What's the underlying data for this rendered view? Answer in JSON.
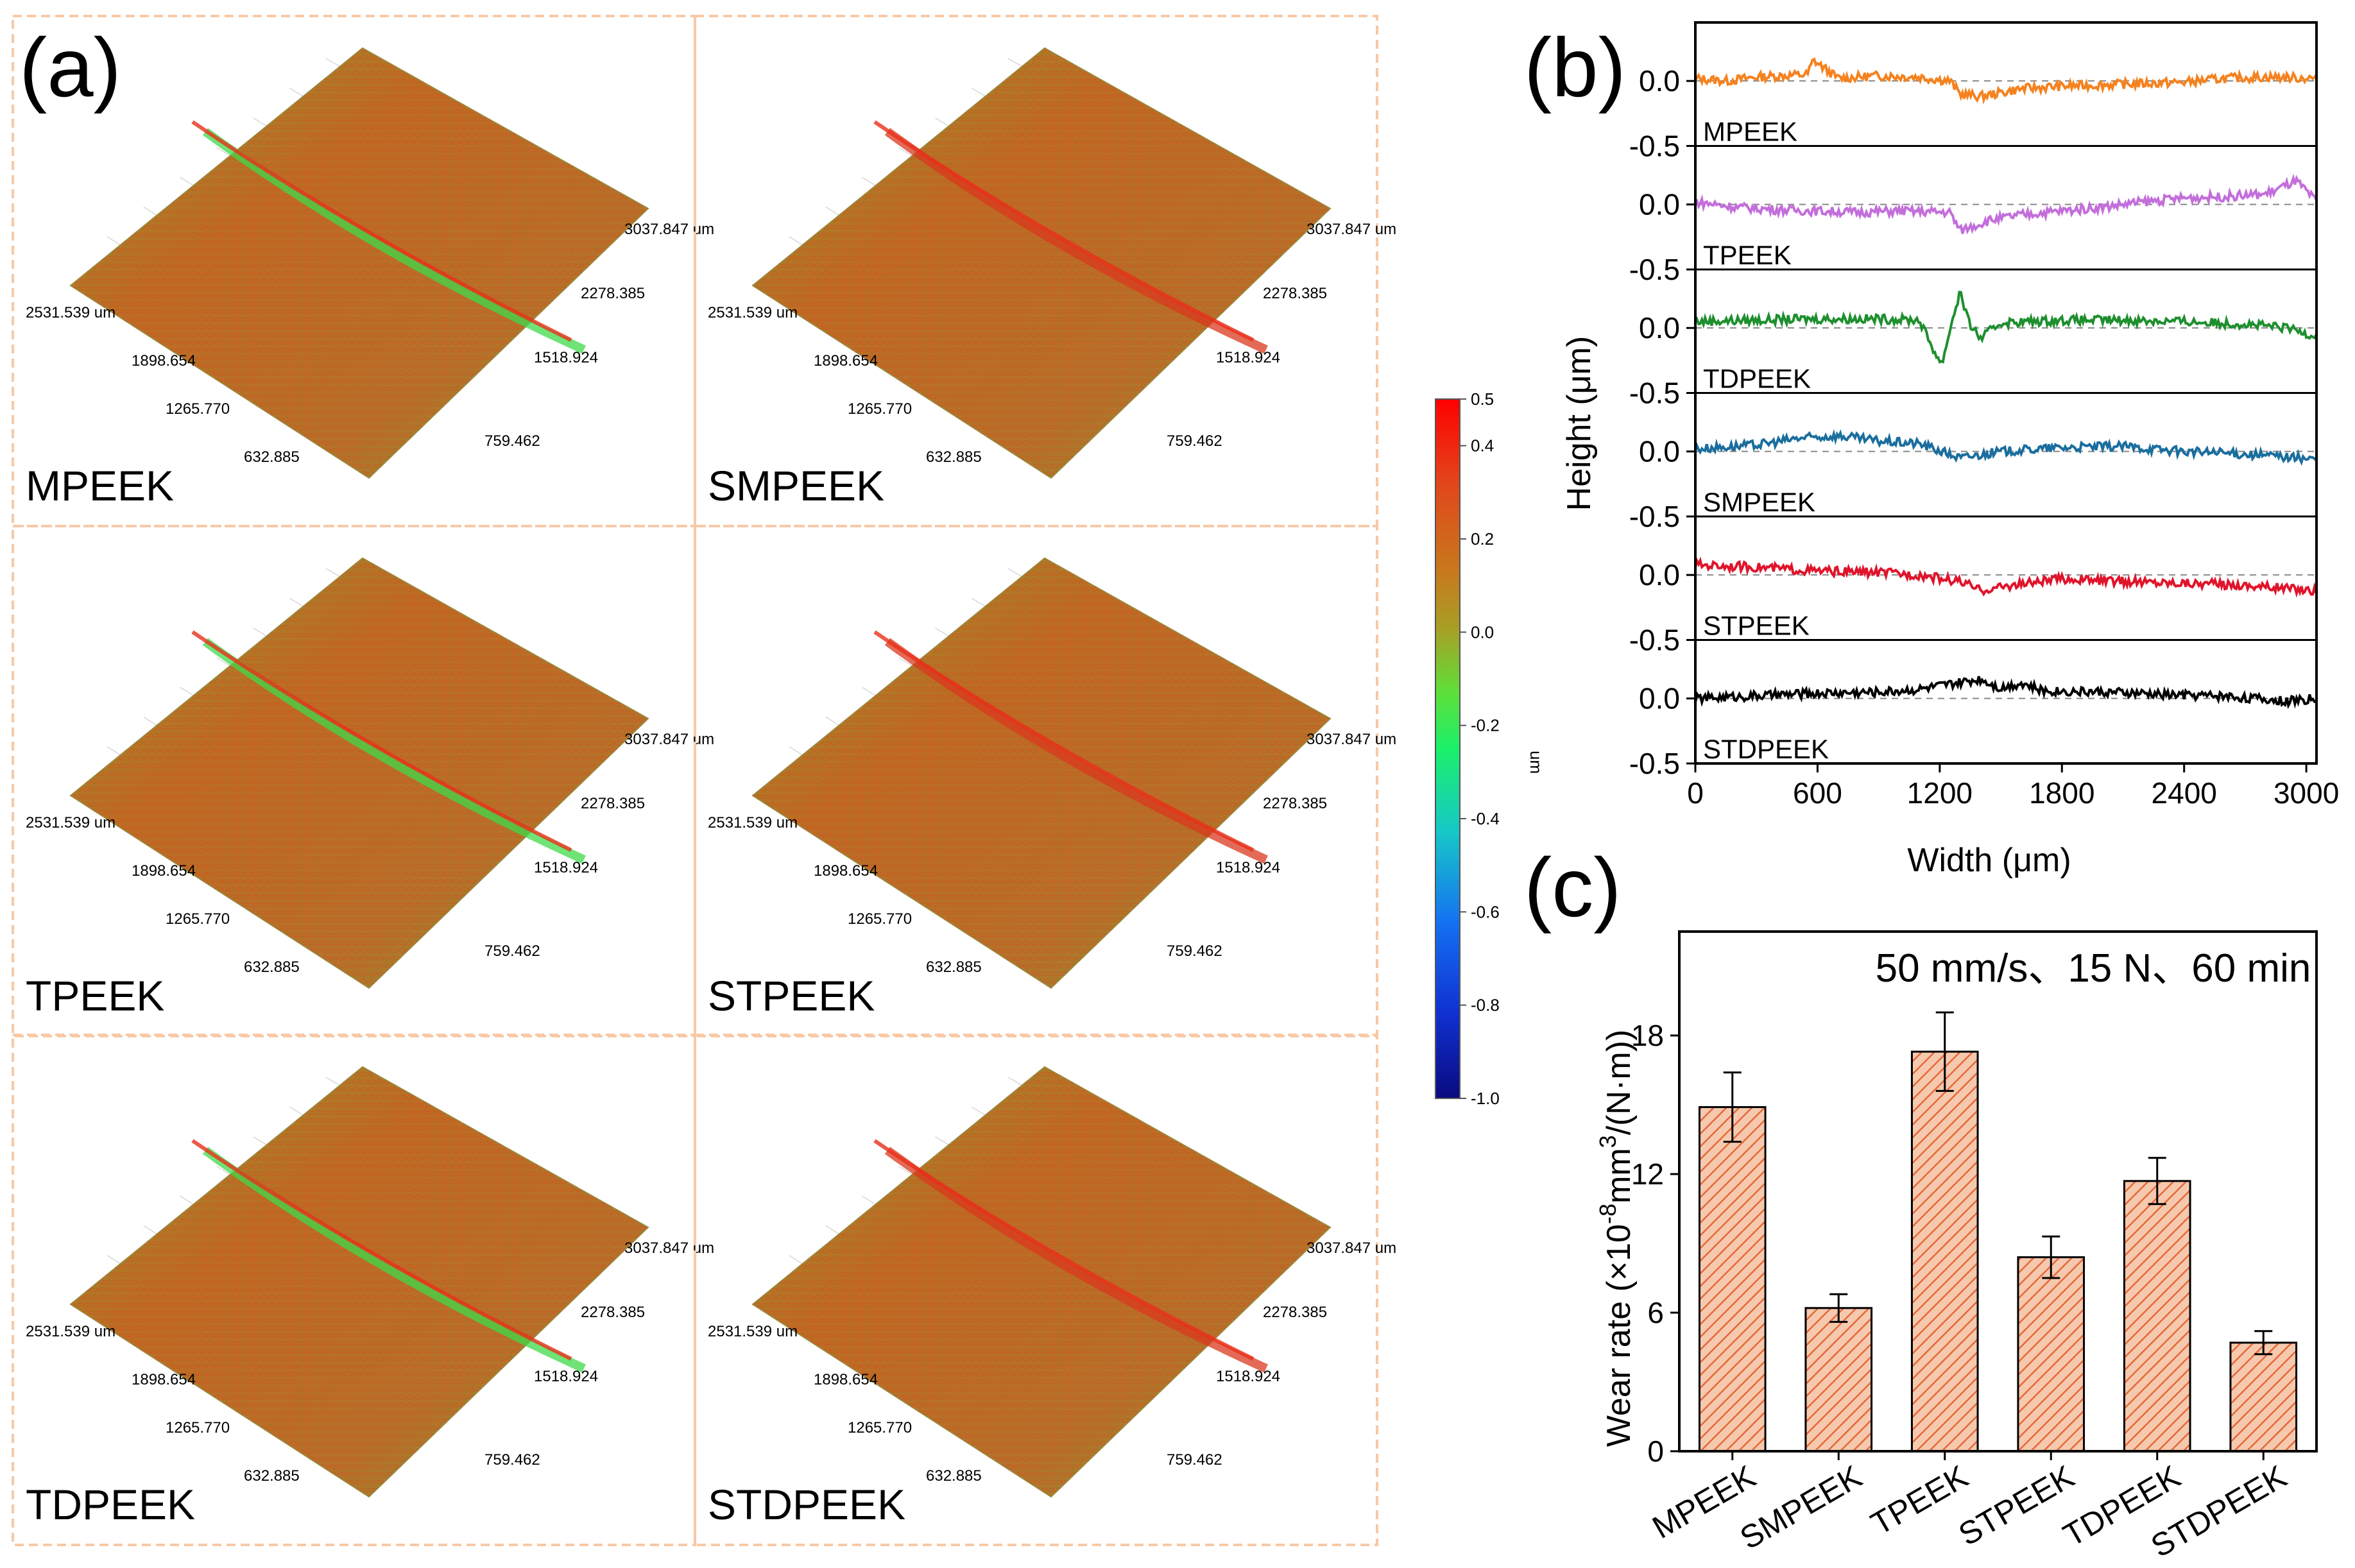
{
  "panel_a": {
    "label": "(a)",
    "samples": [
      "MPEEK",
      "SMPEEK",
      "TPEEK",
      "STPEEK",
      "TDPEEK",
      "STDPEEK"
    ],
    "axis_labels_y": [
      "2531.539 um",
      "1898.654",
      "1265.770",
      "632.885"
    ],
    "axis_labels_x": [
      "3037.847 um",
      "2278.385",
      "1518.924",
      "759.462"
    ],
    "colorbar": {
      "unit": "um",
      "ticks": [
        "0.5",
        "0.4",
        "0.2",
        "0.0",
        "-0.2",
        "-0.4",
        "-0.6",
        "-0.8",
        "-1.0"
      ],
      "min": -1.0,
      "max": 0.5
    }
  },
  "chart_data": [
    {
      "id": "b",
      "panel_label": "(b)",
      "type": "line",
      "xlabel": "Width (μm)",
      "ylabel": "Height (μm)",
      "xlim": [
        0,
        3050
      ],
      "x_ticks": [
        "0",
        "600",
        "1200",
        "1800",
        "2400",
        "3000"
      ],
      "strip_y_ticks": [
        "0.0",
        "-0.5"
      ],
      "bottom_tick": "-0.5",
      "strip_ylim": [
        -0.5,
        0.45
      ],
      "series": [
        {
          "name": "MPEEK",
          "color": "#F5821F",
          "values": [
            [
              0,
              0.02
            ],
            [
              150,
              0.0
            ],
            [
              300,
              0.03
            ],
            [
              550,
              0.05
            ],
            [
              580,
              0.16
            ],
            [
              700,
              0.02
            ],
            [
              900,
              0.04
            ],
            [
              1100,
              0.03
            ],
            [
              1250,
              0.0
            ],
            [
              1300,
              -0.1
            ],
            [
              1400,
              -0.12
            ],
            [
              1600,
              -0.06
            ],
            [
              1800,
              -0.04
            ],
            [
              2000,
              -0.03
            ],
            [
              2200,
              -0.02
            ],
            [
              2400,
              -0.01
            ],
            [
              2600,
              0.02
            ],
            [
              2800,
              0.03
            ],
            [
              3050,
              0.02
            ]
          ]
        },
        {
          "name": "TPEEK",
          "color": "#C36EDB",
          "values": [
            [
              0,
              0.02
            ],
            [
              200,
              -0.02
            ],
            [
              400,
              -0.04
            ],
            [
              600,
              -0.05
            ],
            [
              800,
              -0.06
            ],
            [
              1000,
              -0.05
            ],
            [
              1250,
              -0.06
            ],
            [
              1300,
              -0.2
            ],
            [
              1450,
              -0.12
            ],
            [
              1600,
              -0.08
            ],
            [
              1800,
              -0.05
            ],
            [
              2000,
              -0.02
            ],
            [
              2200,
              0.02
            ],
            [
              2400,
              0.05
            ],
            [
              2600,
              0.06
            ],
            [
              2800,
              0.08
            ],
            [
              2950,
              0.18
            ],
            [
              3050,
              0.02
            ]
          ]
        },
        {
          "name": "TDPEEK",
          "color": "#1E8F2E",
          "values": [
            [
              0,
              0.05
            ],
            [
              300,
              0.06
            ],
            [
              600,
              0.07
            ],
            [
              900,
              0.07
            ],
            [
              1100,
              0.06
            ],
            [
              1180,
              -0.2
            ],
            [
              1210,
              -0.28
            ],
            [
              1260,
              0.05
            ],
            [
              1300,
              0.28
            ],
            [
              1340,
              0.05
            ],
            [
              1400,
              -0.08
            ],
            [
              1500,
              0.04
            ],
            [
              1800,
              0.06
            ],
            [
              2100,
              0.06
            ],
            [
              2400,
              0.05
            ],
            [
              2700,
              0.03
            ],
            [
              2900,
              0.0
            ],
            [
              3050,
              -0.06
            ]
          ]
        },
        {
          "name": "SMPEEK",
          "color": "#1A6E9E",
          "values": [
            [
              0,
              0.02
            ],
            [
              300,
              0.05
            ],
            [
              500,
              0.1
            ],
            [
              700,
              0.12
            ],
            [
              900,
              0.08
            ],
            [
              1100,
              0.06
            ],
            [
              1300,
              -0.05
            ],
            [
              1500,
              0.0
            ],
            [
              1800,
              0.03
            ],
            [
              2100,
              0.04
            ],
            [
              2400,
              0.0
            ],
            [
              2700,
              -0.02
            ],
            [
              2900,
              -0.04
            ],
            [
              3050,
              -0.06
            ]
          ]
        },
        {
          "name": "STPEEK",
          "color": "#E0142B",
          "values": [
            [
              0,
              0.08
            ],
            [
              300,
              0.06
            ],
            [
              600,
              0.03
            ],
            [
              900,
              0.02
            ],
            [
              1100,
              0.0
            ],
            [
              1300,
              -0.05
            ],
            [
              1400,
              -0.12
            ],
            [
              1550,
              -0.08
            ],
            [
              1800,
              -0.03
            ],
            [
              2100,
              -0.05
            ],
            [
              2400,
              -0.06
            ],
            [
              2700,
              -0.08
            ],
            [
              2900,
              -0.1
            ],
            [
              3050,
              -0.12
            ]
          ]
        },
        {
          "name": "STDPEEK",
          "color": "#000000",
          "values": [
            [
              0,
              0.0
            ],
            [
              300,
              0.02
            ],
            [
              600,
              0.04
            ],
            [
              900,
              0.05
            ],
            [
              1100,
              0.07
            ],
            [
              1300,
              0.12
            ],
            [
              1400,
              0.15
            ],
            [
              1500,
              0.08
            ],
            [
              1600,
              0.12
            ],
            [
              1700,
              0.06
            ],
            [
              2000,
              0.05
            ],
            [
              2300,
              0.03
            ],
            [
              2600,
              0.02
            ],
            [
              2900,
              -0.02
            ],
            [
              3050,
              0.0
            ]
          ]
        }
      ]
    },
    {
      "id": "c",
      "panel_label": "(c)",
      "type": "bar",
      "title": "50 mm/s、15 N、60 min",
      "ylabel_base": "Wear rate (×10",
      "ylabel_exp1": "-8",
      "ylabel_mid": "mm",
      "ylabel_exp2": "3",
      "ylabel_end": "/(N·m))",
      "categories": [
        "MPEEK",
        "SMPEEK",
        "TPEEK",
        "STPEEK",
        "TDPEEK",
        "STDPEEK"
      ],
      "values": [
        14.9,
        6.2,
        17.3,
        8.4,
        11.7,
        4.7
      ],
      "errors": [
        1.5,
        0.6,
        1.7,
        0.9,
        1.0,
        0.5
      ],
      "ylim": [
        0,
        22.5
      ],
      "y_ticks": [
        "0",
        "6",
        "12",
        "18"
      ],
      "bar_color": "#EE7D3D"
    }
  ]
}
